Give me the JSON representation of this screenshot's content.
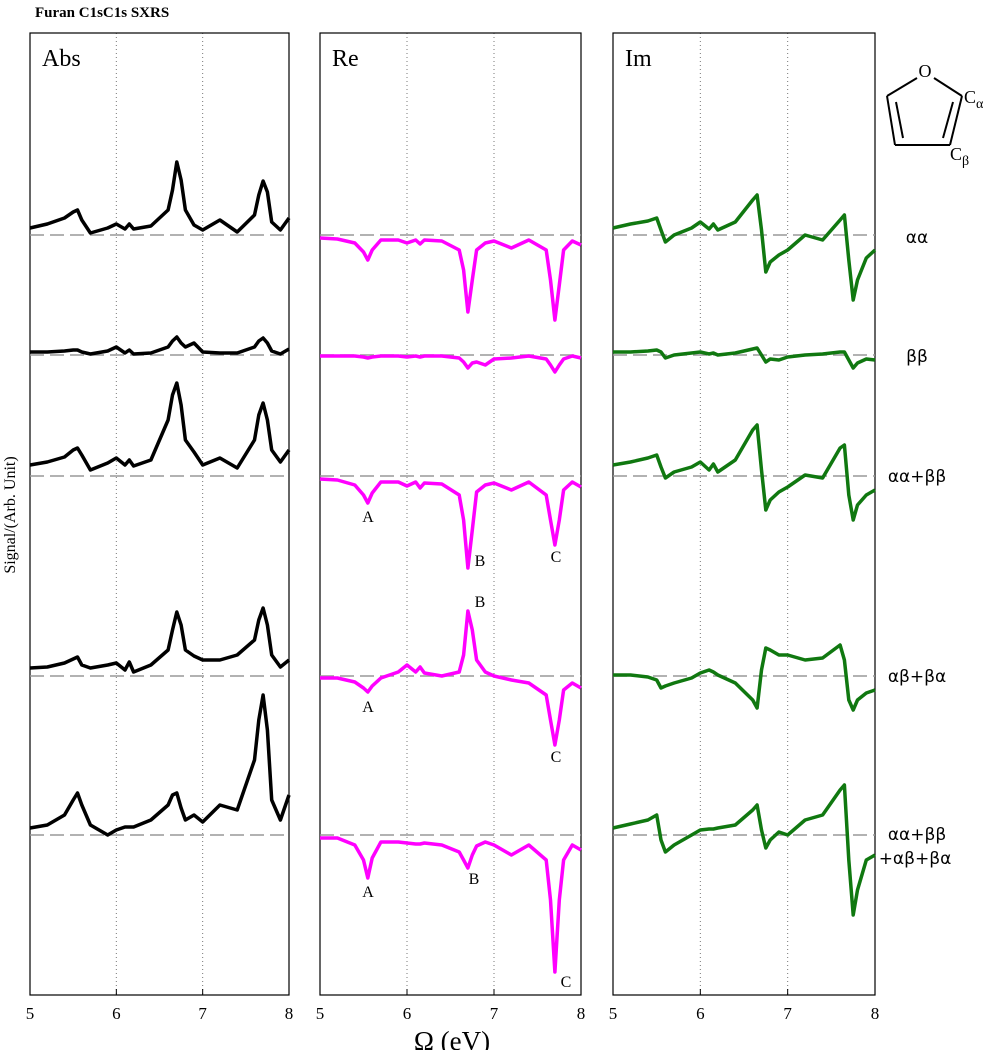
{
  "title": "Furan C1sC1s SXRS",
  "y_label": "Signal/(Arb. Unit)",
  "x_label": "Ω (eV)",
  "row_labels": [
    [
      "αα"
    ],
    [
      "ββ"
    ],
    [
      "αα+ββ"
    ],
    [
      "αβ+βα"
    ],
    [
      "αα+ββ",
      "+αβ+βα"
    ]
  ],
  "molecule": {
    "ring_atom": "O",
    "atoms": [
      {
        "symbol": "C",
        "sub": "α"
      },
      {
        "symbol": "C",
        "sub": "β"
      }
    ]
  },
  "chart_data": [
    {
      "type": "line",
      "title": "Abs",
      "xlim": [
        5,
        8
      ],
      "xticks": [
        5,
        6,
        7,
        8
      ],
      "ylim": [
        0,
        962
      ],
      "grid": true,
      "x": [
        5.0,
        5.2,
        5.4,
        5.5,
        5.55,
        5.6,
        5.7,
        5.9,
        6.0,
        6.1,
        6.15,
        6.2,
        6.4,
        6.6,
        6.65,
        6.7,
        6.75,
        6.8,
        6.9,
        7.0,
        7.2,
        7.4,
        7.6,
        7.65,
        7.7,
        7.75,
        7.8,
        7.9,
        8.0
      ],
      "series": [
        {
          "color": "#000000",
          "baseline": 760,
          "values": [
            767,
            771,
            777,
            783,
            785,
            775,
            762,
            767,
            771,
            766,
            771,
            766,
            769,
            785,
            805,
            833,
            815,
            785,
            770,
            765,
            775,
            763,
            780,
            800,
            814,
            803,
            773,
            765,
            777
          ]
        },
        {
          "color": "#000000",
          "baseline": 640,
          "values": [
            643,
            643,
            644,
            645,
            645,
            643,
            641,
            644,
            648,
            642,
            645,
            641,
            642,
            648,
            654,
            658,
            652,
            648,
            652,
            643,
            642,
            642,
            648,
            654,
            657,
            652,
            644,
            641,
            646
          ]
        },
        {
          "color": "#000000",
          "baseline": 519,
          "values": [
            530,
            533,
            538,
            545,
            547,
            540,
            525,
            532,
            537,
            530,
            535,
            529,
            535,
            575,
            600,
            612,
            590,
            555,
            543,
            530,
            537,
            527,
            555,
            580,
            592,
            575,
            545,
            533,
            545
          ]
        },
        {
          "color": "#000000",
          "baseline": 319,
          "values": [
            327,
            328,
            332,
            336,
            338,
            330,
            327,
            330,
            332,
            325,
            333,
            323,
            330,
            345,
            365,
            383,
            370,
            345,
            339,
            335,
            335,
            340,
            355,
            375,
            387,
            370,
            340,
            328,
            335
          ]
        },
        {
          "color": "#000000",
          "baseline": 160,
          "values": [
            167,
            170,
            180,
            195,
            202,
            190,
            170,
            160,
            165,
            168,
            168,
            168,
            175,
            190,
            200,
            202,
            187,
            175,
            180,
            173,
            190,
            185,
            235,
            275,
            300,
            265,
            195,
            175,
            200
          ]
        }
      ]
    },
    {
      "type": "line",
      "title": "Re",
      "xlim": [
        5,
        8
      ],
      "xticks": [
        5,
        6,
        7,
        8
      ],
      "ylim": [
        0,
        962
      ],
      "grid": true,
      "x": [
        5.0,
        5.2,
        5.4,
        5.5,
        5.55,
        5.6,
        5.7,
        5.9,
        6.0,
        6.1,
        6.15,
        6.2,
        6.4,
        6.6,
        6.65,
        6.7,
        6.75,
        6.8,
        6.9,
        7.0,
        7.2,
        7.4,
        7.6,
        7.65,
        7.7,
        7.75,
        7.8,
        7.9,
        8.0
      ],
      "annotations": [
        "A",
        "B",
        "C",
        "B",
        "A",
        "C",
        "A",
        "B",
        "C"
      ],
      "series": [
        {
          "color": "#ff00ff",
          "baseline": 760,
          "values": [
            757,
            756,
            752,
            743,
            735,
            745,
            755,
            755,
            752,
            755,
            751,
            755,
            754,
            745,
            725,
            683,
            715,
            745,
            752,
            754,
            747,
            755,
            745,
            715,
            675,
            710,
            745,
            754,
            750
          ]
        },
        {
          "color": "#ff00ff",
          "baseline": 640,
          "values": [
            639,
            639,
            639,
            638,
            637,
            638,
            639,
            639,
            638,
            639,
            638,
            639,
            639,
            637,
            633,
            627,
            632,
            633,
            630,
            636,
            637,
            639,
            636,
            630,
            623,
            630,
            636,
            639,
            637
          ]
        },
        {
          "color": "#ff00ff",
          "baseline": 519,
          "values": [
            516,
            515,
            510,
            500,
            492,
            502,
            513,
            513,
            509,
            513,
            507,
            512,
            511,
            500,
            475,
            427,
            465,
            503,
            510,
            512,
            505,
            513,
            500,
            475,
            450,
            475,
            505,
            513,
            508
          ]
        },
        {
          "color": "#ff00ff",
          "baseline": 319,
          "values": [
            317,
            317,
            313,
            307,
            303,
            309,
            317,
            323,
            330,
            323,
            328,
            322,
            319,
            323,
            340,
            384,
            365,
            335,
            323,
            319,
            315,
            312,
            300,
            275,
            250,
            275,
            305,
            312,
            307
          ]
        },
        {
          "color": "#ff00ff",
          "baseline": 160,
          "values": [
            157,
            157,
            150,
            135,
            117,
            137,
            153,
            153,
            152,
            151,
            151,
            152,
            150,
            143,
            135,
            127,
            140,
            149,
            153,
            150,
            140,
            150,
            135,
            95,
            23,
            95,
            135,
            150,
            145
          ]
        }
      ]
    },
    {
      "type": "line",
      "title": "Im",
      "xlim": [
        5,
        8
      ],
      "xticks": [
        5,
        6,
        7,
        8
      ],
      "ylim": [
        0,
        962
      ],
      "grid": true,
      "x": [
        5.0,
        5.2,
        5.4,
        5.5,
        5.55,
        5.6,
        5.7,
        5.9,
        6.0,
        6.1,
        6.15,
        6.2,
        6.4,
        6.6,
        6.65,
        6.7,
        6.75,
        6.8,
        6.9,
        7.0,
        7.2,
        7.4,
        7.6,
        7.65,
        7.7,
        7.75,
        7.8,
        7.9,
        8.0
      ],
      "series": [
        {
          "color": "#107810",
          "baseline": 760,
          "values": [
            767,
            771,
            774,
            777,
            765,
            753,
            760,
            767,
            773,
            766,
            771,
            765,
            773,
            795,
            800,
            765,
            723,
            733,
            740,
            745,
            760,
            755,
            775,
            780,
            735,
            695,
            715,
            737,
            745
          ]
        },
        {
          "color": "#107810",
          "baseline": 640,
          "values": [
            643,
            643,
            644,
            645,
            643,
            637,
            640,
            642,
            643,
            641,
            642,
            640,
            642,
            646,
            647,
            640,
            633,
            636,
            635,
            638,
            640,
            641,
            643,
            643,
            635,
            627,
            632,
            636,
            635
          ]
        },
        {
          "color": "#107810",
          "baseline": 519,
          "values": [
            530,
            533,
            537,
            540,
            528,
            517,
            523,
            528,
            533,
            525,
            531,
            523,
            535,
            565,
            570,
            525,
            485,
            495,
            503,
            508,
            520,
            517,
            547,
            550,
            500,
            475,
            490,
            500,
            505
          ]
        },
        {
          "color": "#107810",
          "baseline": 319,
          "values": [
            320,
            320,
            318,
            315,
            307,
            309,
            312,
            317,
            322,
            325,
            323,
            320,
            312,
            295,
            287,
            325,
            347,
            345,
            340,
            340,
            335,
            337,
            350,
            335,
            295,
            285,
            295,
            302,
            305
          ]
        },
        {
          "color": "#107810",
          "baseline": 160,
          "values": [
            167,
            171,
            175,
            180,
            155,
            143,
            150,
            160,
            165,
            166,
            166,
            167,
            170,
            185,
            190,
            165,
            147,
            155,
            163,
            160,
            175,
            180,
            205,
            210,
            135,
            80,
            105,
            135,
            140
          ]
        }
      ]
    }
  ]
}
